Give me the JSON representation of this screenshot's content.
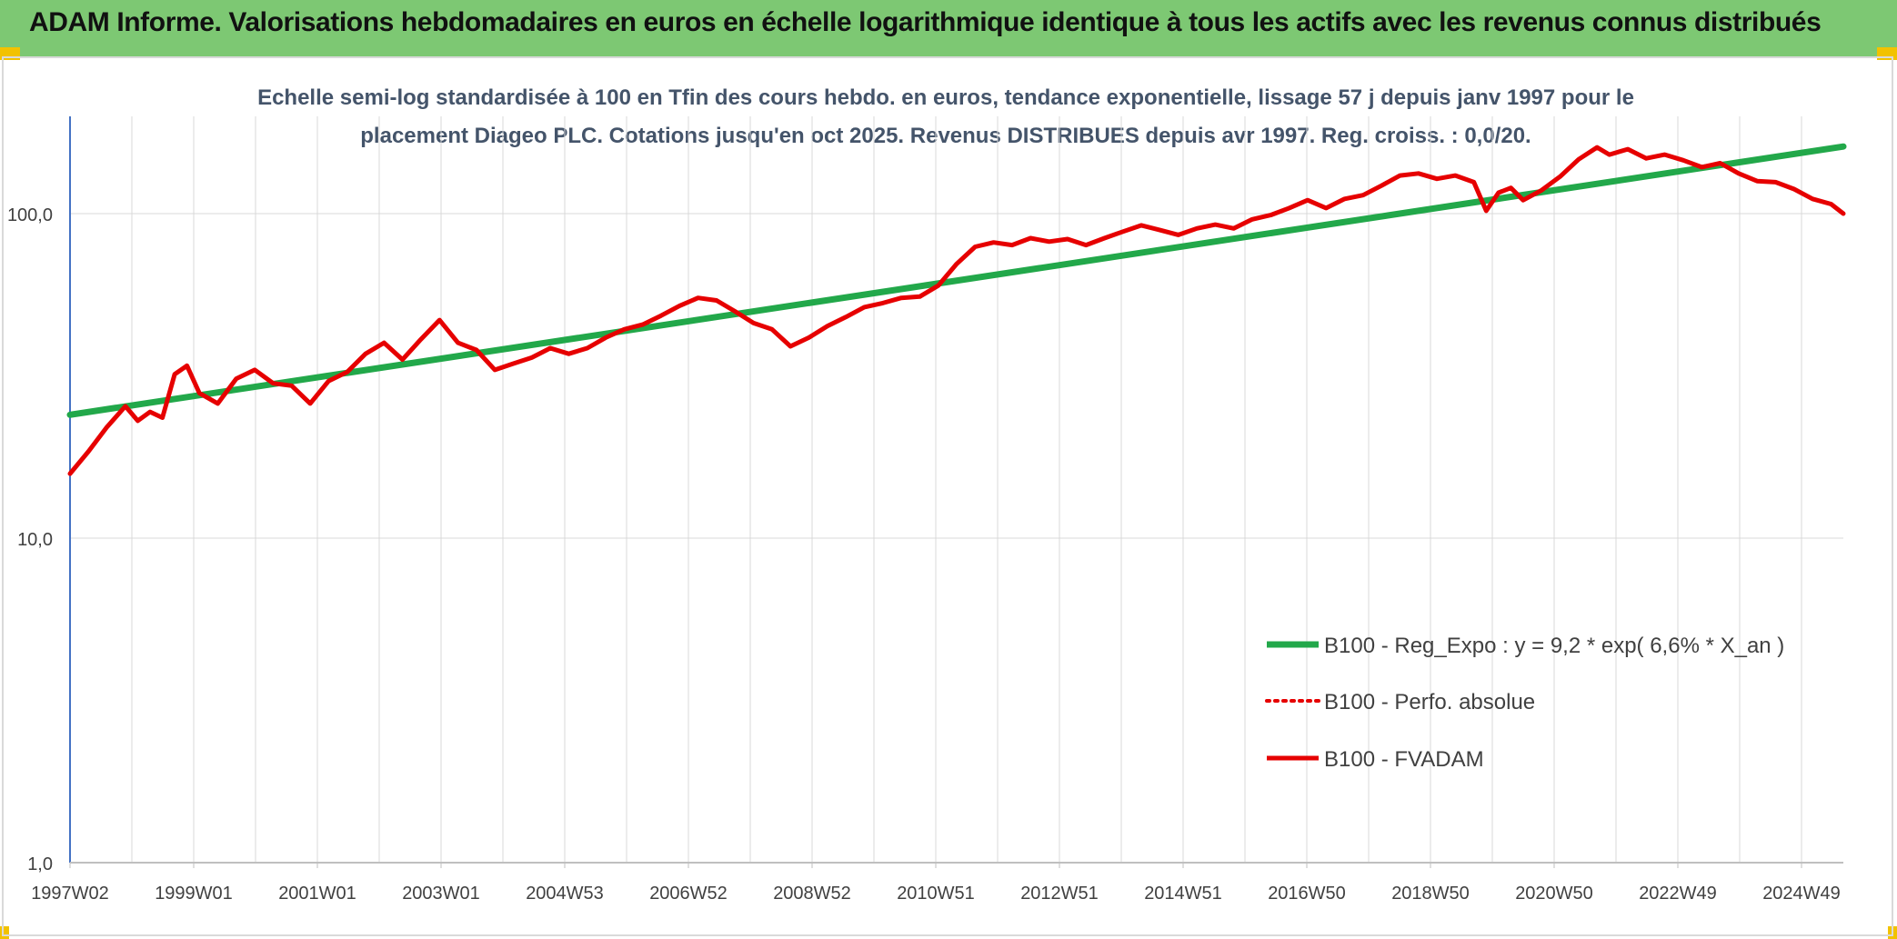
{
  "header": {
    "title": "ADAM Informe. Valorisations hebdomadaires en euros en échelle logarithmique identique à tous les actifs avec les revenus connus distribués"
  },
  "colors": {
    "header_bg": "#7dc873",
    "trend": "#22a84a",
    "price": "#e60000",
    "grid": "#d9d9d9",
    "text": "#44546a"
  },
  "chart_data": {
    "type": "line",
    "title_lines": [
      "Echelle semi-log standardisée à 100 en Tfin des cours hebdo. en euros, tendance exponentielle, lissage 57 j depuis janv 1997 pour le",
      "placement Diageo PLC. Cotations jusqu'en oct 2025. Revenus DISTRIBUES depuis avr 1997. Reg. croiss. : 0,0/20."
    ],
    "y_scale": "log",
    "ylim": [
      1,
      190
    ],
    "y_ticks": [
      "1,0",
      "10,0",
      "100,0"
    ],
    "xlim": [
      1997.0,
      2025.8
    ],
    "x_tick_labels": [
      "1997W02",
      "1999W01",
      "2001W01",
      "2003W01",
      "2004W53",
      "2006W52",
      "2008W52",
      "2010W51",
      "2012W51",
      "2014W51",
      "2016W50",
      "2018W50",
      "2020W50",
      "2022W49",
      "2024W49"
    ],
    "grid": true,
    "legend_position": "bottom-right",
    "series": [
      {
        "name": "B100 - Reg_Expo : y = 9,2 * exp( 6,6% *  X_an )",
        "style": "solid-thick",
        "x": [
          1997.0,
          2025.8
        ],
        "y": [
          24.0,
          161.0
        ]
      },
      {
        "name": "B100 - Perfo. absolue",
        "style": "dotted",
        "x": [],
        "y": []
      },
      {
        "name": "B100 - FVADAM",
        "style": "solid",
        "x": [
          1997.0,
          1997.3,
          1997.6,
          1997.9,
          1998.1,
          1998.3,
          1998.5,
          1998.7,
          1998.9,
          1999.1,
          1999.4,
          1999.7,
          2000.0,
          2000.3,
          2000.6,
          2000.9,
          2001.2,
          2001.5,
          2001.8,
          2002.1,
          2002.4,
          2002.7,
          2003.0,
          2003.3,
          2003.6,
          2003.9,
          2004.2,
          2004.5,
          2004.8,
          2005.1,
          2005.4,
          2005.7,
          2006.0,
          2006.3,
          2006.6,
          2006.9,
          2007.2,
          2007.5,
          2007.8,
          2008.1,
          2008.4,
          2008.7,
          2009.0,
          2009.3,
          2009.6,
          2009.9,
          2010.2,
          2010.5,
          2010.8,
          2011.1,
          2011.4,
          2011.7,
          2012.0,
          2012.3,
          2012.6,
          2012.9,
          2013.2,
          2013.5,
          2013.8,
          2014.1,
          2014.4,
          2014.7,
          2015.0,
          2015.3,
          2015.6,
          2015.9,
          2016.2,
          2016.5,
          2016.8,
          2017.1,
          2017.4,
          2017.7,
          2018.0,
          2018.3,
          2018.6,
          2018.9,
          2019.2,
          2019.5,
          2019.8,
          2020.0,
          2020.2,
          2020.4,
          2020.6,
          2020.9,
          2021.2,
          2021.5,
          2021.8,
          2022.0,
          2022.3,
          2022.6,
          2022.9,
          2023.2,
          2023.5,
          2023.8,
          2024.1,
          2024.4,
          2024.7,
          2025.0,
          2025.3,
          2025.6,
          2025.8
        ],
        "y": [
          15.8,
          18.5,
          22.0,
          25.5,
          23.0,
          24.5,
          23.5,
          32.0,
          34.0,
          28.0,
          26.0,
          31.0,
          33.0,
          30.0,
          29.5,
          26.0,
          30.5,
          32.5,
          37.0,
          40.0,
          35.5,
          41.0,
          47.0,
          40.0,
          38.0,
          33.0,
          34.5,
          36.0,
          38.5,
          37.0,
          38.5,
          41.5,
          44.0,
          45.5,
          48.5,
          52.0,
          55.0,
          54.0,
          50.0,
          46.0,
          44.0,
          39.0,
          41.5,
          45.0,
          48.0,
          51.5,
          53.0,
          55.0,
          55.5,
          60.0,
          70.0,
          79.0,
          81.5,
          80.0,
          84.0,
          82.0,
          83.5,
          80.0,
          84.0,
          88.0,
          92.0,
          89.0,
          86.0,
          90.0,
          92.5,
          90.0,
          96.0,
          99.0,
          104.0,
          110.0,
          104.0,
          111.0,
          114.0,
          122.0,
          131.0,
          133.0,
          128.0,
          131.0,
          125.0,
          102.0,
          116.0,
          120.0,
          110.0,
          118.0,
          130.0,
          147.0,
          160.0,
          152.0,
          158.0,
          148.0,
          152.0,
          146.0,
          139.0,
          143.0,
          133.0,
          126.0,
          125.0,
          119.0,
          111.0,
          107.0,
          100.0
        ]
      }
    ]
  }
}
